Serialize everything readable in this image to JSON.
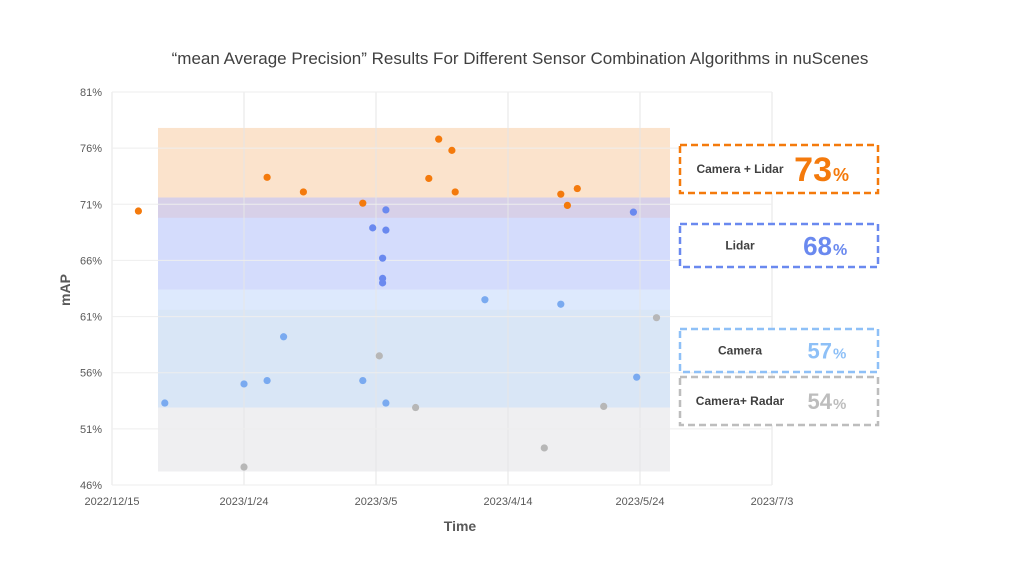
{
  "chart_data": {
    "type": "scatter",
    "title": "“mean Average Precision” Results For Different Sensor Combination Algorithms in nuScenes",
    "xlabel": "Time",
    "ylabel": "mAP",
    "x_ticks": [
      "2022/12/15",
      "2023/1/24",
      "2023/3/5",
      "2023/4/14",
      "2023/5/24",
      "2023/7/3"
    ],
    "y_ticks": [
      "46%",
      "51%",
      "56%",
      "61%",
      "66%",
      "71%",
      "76%",
      "81%"
    ],
    "xlim": [
      "2022/12/15",
      "2023/7/3"
    ],
    "ylim": [
      46,
      81
    ],
    "grid": true,
    "bands": [
      {
        "name": "Camera + Lidar",
        "from": 71.6,
        "to": 77.8,
        "color": "#fbe3cc"
      },
      {
        "name": "Lidar",
        "from": 63.4,
        "to": 71.6,
        "color": "#d4dcfc"
      },
      {
        "name": "Camera",
        "from": 52.9,
        "to": 63.4,
        "color": "#d9e6f6"
      },
      {
        "name": "Camera+ Radar",
        "from": 47.2,
        "to": 52.9,
        "color": "#efeff1"
      }
    ],
    "series": [
      {
        "name": "Camera + Lidar",
        "color": "#f47a0c",
        "points": [
          [
            "2022/12/23",
            70.4
          ],
          [
            "2023/1/31",
            73.4
          ],
          [
            "2023/2/11",
            72.1
          ],
          [
            "2023/3/1",
            71.1
          ],
          [
            "2023/3/21",
            73.3
          ],
          [
            "2023/3/24",
            76.8
          ],
          [
            "2023/3/28",
            75.8
          ],
          [
            "2023/3/29",
            72.1
          ],
          [
            "2023/4/30",
            71.9
          ],
          [
            "2023/5/2",
            70.9
          ],
          [
            "2023/5/5",
            72.4
          ]
        ]
      },
      {
        "name": "Lidar",
        "color": "#6a89ef",
        "points": [
          [
            "2023/3/4",
            68.9
          ],
          [
            "2023/3/8",
            70.5
          ],
          [
            "2023/3/8",
            68.7
          ],
          [
            "2023/3/7",
            66.2
          ],
          [
            "2023/3/7",
            64.4
          ],
          [
            "2023/3/7",
            64.0
          ],
          [
            "2023/5/22",
            70.3
          ]
        ]
      },
      {
        "name": "Camera",
        "color": "#7aaaf0",
        "points": [
          [
            "2022/12/31",
            53.3
          ],
          [
            "2023/1/24",
            55.0
          ],
          [
            "2023/1/31",
            55.3
          ],
          [
            "2023/2/5",
            59.2
          ],
          [
            "2023/3/1",
            55.3
          ],
          [
            "2023/3/8",
            53.3
          ],
          [
            "2023/4/7",
            62.5
          ],
          [
            "2023/4/30",
            62.1
          ],
          [
            "2023/5/23",
            55.6
          ]
        ]
      },
      {
        "name": "Camera+ Radar",
        "color": "#b7b7b7",
        "points": [
          [
            "2023/1/24",
            47.6
          ],
          [
            "2023/3/6",
            57.5
          ],
          [
            "2023/3/17",
            52.9
          ],
          [
            "2023/4/25",
            49.3
          ],
          [
            "2023/5/13",
            53.0
          ],
          [
            "2023/5/29",
            60.9
          ]
        ]
      }
    ],
    "legend": [
      {
        "label": "Camera + Lidar",
        "value": "73",
        "unit": "%",
        "color": "#f47a0c"
      },
      {
        "label": "Lidar",
        "value": "68",
        "unit": "%",
        "color": "#6a89ef"
      },
      {
        "label": "Camera",
        "value": "57",
        "unit": "%",
        "color": "#8ec0f7"
      },
      {
        "label": "Camera+ Radar",
        "value": "54",
        "unit": "%",
        "color": "#bdbdbd"
      }
    ],
    "legend_position": "right"
  }
}
